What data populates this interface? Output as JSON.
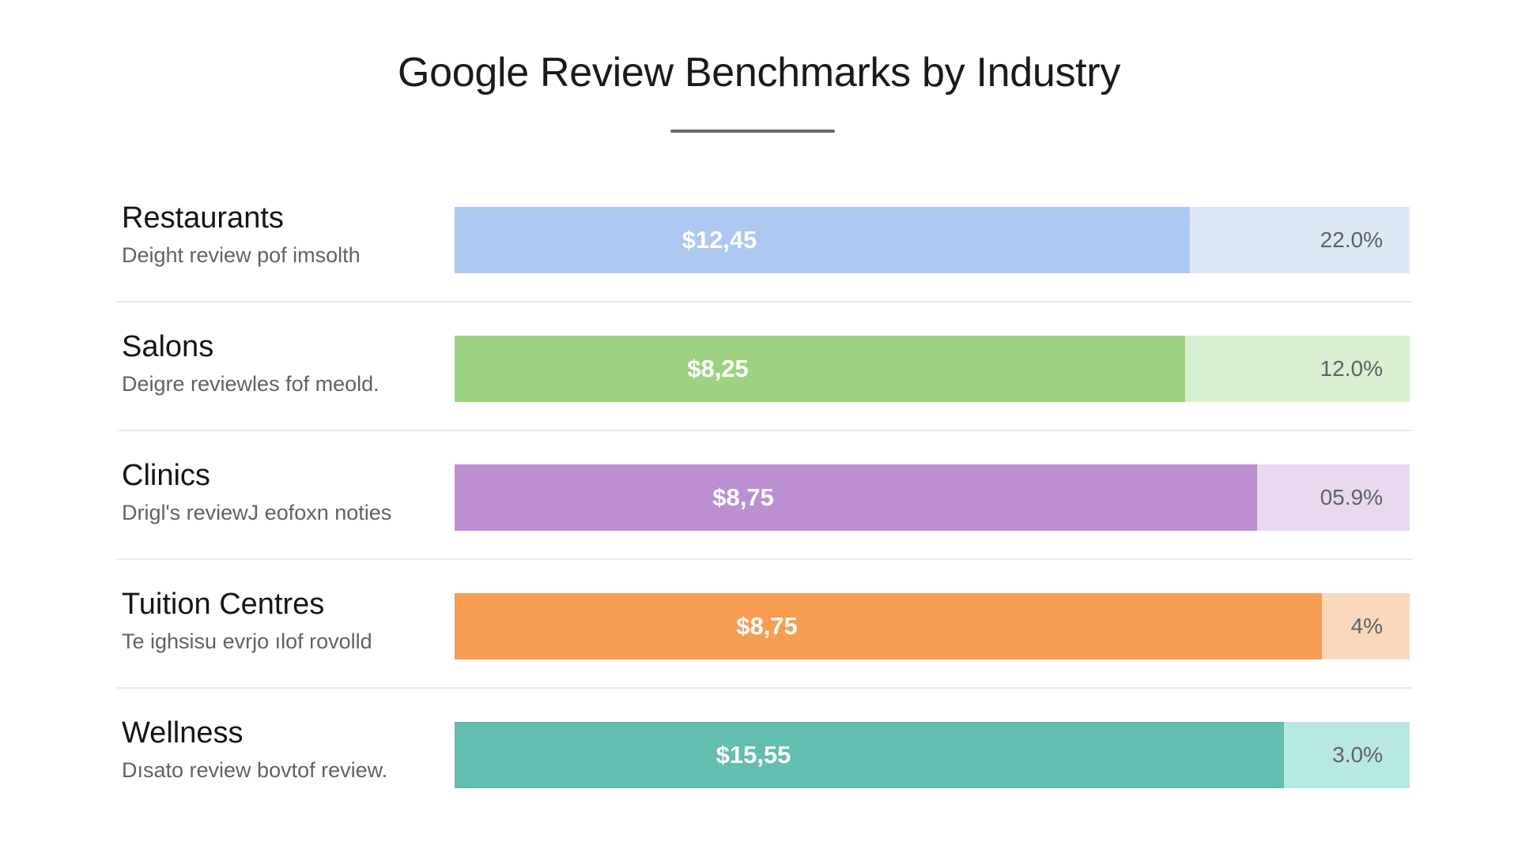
{
  "title": "Google Review Benchmarks by Industry",
  "chart_data": {
    "type": "bar",
    "orientation": "horizontal",
    "categories": [
      "Restaurants",
      "Salons",
      "Clinics",
      "Tuition Centres",
      "Wellness"
    ],
    "descriptions": [
      "Deight review pof imsolth",
      "Deigre reviewles fof meold.",
      "Drigl's reviewJ eofoxn noties",
      "Te ighsisu evrjo ılof rovolld",
      "Dısato review bovtof  review."
    ],
    "value_labels": [
      "$12,45",
      "$8,25",
      "$8,75",
      "$8,75",
      "$15,55"
    ],
    "percent_labels": [
      "22.0%",
      "12.0%",
      "05.9%",
      "4%",
      "3.0%"
    ],
    "fill_fractions": [
      0.77,
      0.765,
      0.84,
      0.908,
      0.868
    ],
    "colors": [
      "#adc8f0",
      "#9ed283",
      "#bb8fd2",
      "#f69d52",
      "#63bdb1"
    ],
    "track_colors": [
      "#dde8f7",
      "#d9f0d1",
      "#ead8f1",
      "#fad8bb",
      "#b8e8e2"
    ]
  }
}
